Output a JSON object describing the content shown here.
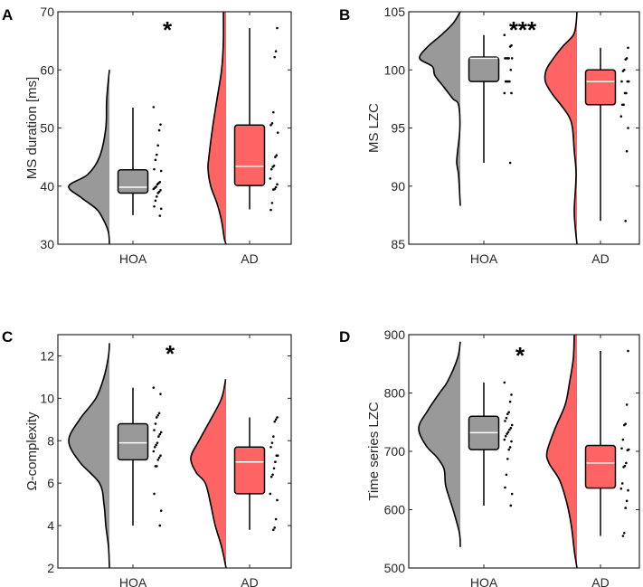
{
  "colors": {
    "HOA": "#999999",
    "AD": "#FF6464",
    "median": "#FFFFFF",
    "axis": "#262626"
  },
  "chart_data": [
    {
      "type": "raincloud",
      "panel": "A",
      "ylabel": "MS duration [ms]",
      "ylim": [
        30,
        70
      ],
      "yticks": [
        30,
        40,
        50,
        60,
        70
      ],
      "categories": [
        "HOA",
        "AD"
      ],
      "significance": "*",
      "groups": [
        {
          "name": "HOA",
          "box": {
            "whisker_low": 35,
            "q1": 38.8,
            "median": 39.8,
            "q3": 42.8,
            "whisker_high": 53.5
          },
          "density": [
            [
              60,
              0
            ],
            [
              55,
              0.06
            ],
            [
              50,
              0.08
            ],
            [
              45,
              0.22
            ],
            [
              42,
              0.48
            ],
            [
              40,
              0.9
            ],
            [
              38,
              0.62
            ],
            [
              36,
              0.28
            ],
            [
              34,
              0.12
            ],
            [
              32,
              0.02
            ],
            [
              30,
              0
            ]
          ],
          "points": [
            53.6,
            50.6,
            49.6,
            47,
            45.4,
            44.5,
            42.9,
            42.6,
            40.7,
            40.5,
            40.3,
            39.9,
            39.7,
            39.5,
            39.3,
            39.0,
            38.8,
            38.2,
            37.5,
            36.5,
            36.1,
            34.9
          ]
        },
        {
          "name": "AD",
          "box": {
            "whisker_low": 36,
            "q1": 40.1,
            "median": 43.4,
            "q3": 50.5,
            "whisker_high": 67.2
          },
          "density": [
            [
              70,
              0.06
            ],
            [
              65,
              0.06
            ],
            [
              60,
              0.1
            ],
            [
              55,
              0.2
            ],
            [
              50,
              0.3
            ],
            [
              45,
              0.38
            ],
            [
              43,
              0.4
            ],
            [
              40,
              0.34
            ],
            [
              37,
              0.2
            ],
            [
              34,
              0.1
            ],
            [
              31,
              0.04
            ],
            [
              30,
              0
            ]
          ],
          "points": [
            67.2,
            63.2,
            62.2,
            52.7,
            50.8,
            50.5,
            49.2,
            45.3,
            45,
            43.5,
            43.3,
            42.9,
            41.3,
            40.3,
            39.8,
            39.5,
            39.4,
            37.1,
            35.9
          ]
        }
      ]
    },
    {
      "type": "raincloud",
      "panel": "B",
      "ylabel": "MS LZC",
      "ylim": [
        85,
        105
      ],
      "yticks": [
        85,
        90,
        95,
        100,
        105
      ],
      "categories": [
        "HOA",
        "AD"
      ],
      "significance": "***",
      "groups": [
        {
          "name": "HOA",
          "box": {
            "whisker_low": 92,
            "q1": 99,
            "median": 101,
            "q3": 101.1,
            "whisker_high": 103
          },
          "density": [
            [
              105,
              0
            ],
            [
              104,
              0.16
            ],
            [
              103,
              0.42
            ],
            [
              102,
              0.72
            ],
            [
              101,
              0.9
            ],
            [
              100.3,
              0.62
            ],
            [
              99.5,
              0.56
            ],
            [
              98.5,
              0.36
            ],
            [
              97.5,
              0.16
            ],
            [
              97,
              0.04
            ],
            [
              95,
              0.01
            ],
            [
              93,
              0.06
            ],
            [
              92,
              0.08
            ],
            [
              91,
              0.04
            ],
            [
              89,
              0.01
            ],
            [
              88.3,
              0
            ]
          ],
          "points": [
            103,
            102.1,
            102,
            101,
            101,
            101,
            101,
            101,
            100,
            99,
            99,
            99,
            99,
            98,
            98,
            92
          ]
        },
        {
          "name": "AD",
          "box": {
            "whisker_low": 87,
            "q1": 97,
            "median": 99,
            "q3": 100,
            "whisker_high": 101.9
          },
          "density": [
            [
              105,
              0
            ],
            [
              104,
              0.02
            ],
            [
              103,
              0.08
            ],
            [
              102,
              0.32
            ],
            [
              101,
              0.52
            ],
            [
              100,
              0.68
            ],
            [
              99,
              0.7
            ],
            [
              98,
              0.56
            ],
            [
              97,
              0.36
            ],
            [
              96,
              0.18
            ],
            [
              95,
              0.1
            ],
            [
              93,
              0.06
            ],
            [
              91,
              0.02
            ],
            [
              88,
              0.06
            ],
            [
              86.5,
              0.04
            ],
            [
              85,
              0
            ]
          ],
          "points": [
            101.9,
            101,
            100.9,
            100,
            99.9,
            99,
            99,
            99,
            98,
            98,
            97,
            97,
            96,
            95,
            93,
            87
          ]
        }
      ]
    },
    {
      "type": "raincloud",
      "panel": "C",
      "ylabel": "Ω-complexity",
      "ylim": [
        2,
        13
      ],
      "yticks": [
        2,
        4,
        6,
        8,
        10,
        12
      ],
      "categories": [
        "HOA",
        "AD"
      ],
      "significance": "*",
      "groups": [
        {
          "name": "HOA",
          "box": {
            "whisker_low": 4,
            "q1": 7.1,
            "median": 7.9,
            "q3": 8.8,
            "whisker_high": 10.5
          },
          "density": [
            [
              12.6,
              0
            ],
            [
              12,
              0.02
            ],
            [
              11,
              0.12
            ],
            [
              10,
              0.3
            ],
            [
              9,
              0.66
            ],
            [
              8,
              0.9
            ],
            [
              7,
              0.66
            ],
            [
              6,
              0.22
            ],
            [
              5,
              0.12
            ],
            [
              4,
              0.08
            ],
            [
              3,
              0.02
            ],
            [
              2,
              0
            ]
          ],
          "points": [
            10.5,
            10.2,
            9.3,
            9.2,
            9.1,
            8.8,
            8.5,
            8.4,
            8.3,
            8.2,
            7.9,
            7.8,
            7.7,
            7.5,
            7.3,
            7.2,
            7.1,
            6.8,
            6.8,
            5.5,
            4.7,
            4.0
          ]
        },
        {
          "name": "AD",
          "box": {
            "whisker_low": 3.8,
            "q1": 5.5,
            "median": 7.0,
            "q3": 7.7,
            "whisker_high": 9.1
          },
          "density": [
            [
              10.9,
              0.01
            ],
            [
              10,
              0.1
            ],
            [
              9,
              0.34
            ],
            [
              8,
              0.6
            ],
            [
              7.2,
              0.78
            ],
            [
              6.5,
              0.66
            ],
            [
              6,
              0.46
            ],
            [
              5,
              0.34
            ],
            [
              4,
              0.24
            ],
            [
              3,
              0.1
            ],
            [
              2,
              0
            ]
          ],
          "points": [
            9.1,
            9.0,
            8.9,
            8.2,
            7.9,
            7.7,
            7.3,
            7.3,
            7.0,
            6.7,
            6.4,
            6.3,
            5.5,
            5.2,
            4.3,
            3.9,
            3.8
          ]
        }
      ]
    },
    {
      "type": "raincloud",
      "panel": "D",
      "ylabel": "Time series LZC",
      "ylim": [
        500,
        900
      ],
      "yticks": [
        500,
        600,
        700,
        800,
        900
      ],
      "categories": [
        "HOA",
        "AD"
      ],
      "significance": "*",
      "groups": [
        {
          "name": "HOA",
          "box": {
            "whisker_low": 607,
            "q1": 703,
            "median": 732,
            "q3": 760,
            "whisker_high": 818
          },
          "density": [
            [
              888,
              0
            ],
            [
              860,
              0.06
            ],
            [
              820,
              0.28
            ],
            [
              800,
              0.46
            ],
            [
              770,
              0.72
            ],
            [
              740,
              0.92
            ],
            [
              710,
              0.76
            ],
            [
              690,
              0.52
            ],
            [
              670,
              0.36
            ],
            [
              640,
              0.32
            ],
            [
              600,
              0.16
            ],
            [
              560,
              0.02
            ],
            [
              536,
              0
            ]
          ],
          "points": [
            818,
            797,
            785,
            767,
            764,
            757,
            752,
            745,
            740,
            737,
            733,
            730,
            726,
            720,
            717,
            707,
            703,
            687,
            660,
            638,
            627,
            607
          ]
        },
        {
          "name": "AD",
          "box": {
            "whisker_low": 555,
            "q1": 637,
            "median": 680,
            "q3": 710,
            "whisker_high": 872
          },
          "density": [
            [
              900,
              0.06
            ],
            [
              860,
              0.08
            ],
            [
              820,
              0.16
            ],
            [
              780,
              0.26
            ],
            [
              740,
              0.48
            ],
            [
              700,
              0.66
            ],
            [
              680,
              0.62
            ],
            [
              650,
              0.38
            ],
            [
              610,
              0.22
            ],
            [
              570,
              0.12
            ],
            [
              530,
              0.06
            ],
            [
              500,
              0
            ]
          ],
          "points": [
            872,
            780,
            747,
            745,
            720,
            705,
            703,
            702,
            680,
            675,
            673,
            645,
            636,
            633,
            615,
            603,
            560,
            555
          ]
        }
      ]
    }
  ]
}
